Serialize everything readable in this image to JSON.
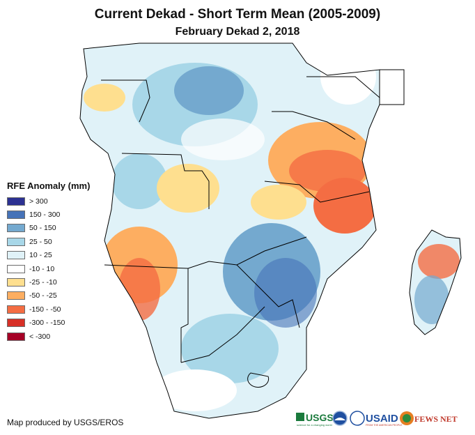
{
  "title": "Current Dekad - Short Term Mean (2005-2009)",
  "subtitle": "February Dekad 2, 2018",
  "legend": {
    "title": "RFE Anomaly (mm)",
    "items": [
      {
        "label": "> 300",
        "color": "#2c3192"
      },
      {
        "label": "150 - 300",
        "color": "#4673b8"
      },
      {
        "label": "50 - 150",
        "color": "#74a9cf"
      },
      {
        "label": "25 - 50",
        "color": "#a8d7e8"
      },
      {
        "label": "10 - 25",
        "color": "#e0f2f8"
      },
      {
        "label": "-10 - 10",
        "color": "#ffffff"
      },
      {
        "label": "-25 - -10",
        "color": "#fedf8f"
      },
      {
        "label": "-50 - -25",
        "color": "#fdae61"
      },
      {
        "label": "-150 - -50",
        "color": "#f46d43"
      },
      {
        "label": "-300 - -150",
        "color": "#d73027"
      },
      {
        "label": "< -300",
        "color": "#a50026"
      }
    ]
  },
  "credit": "Map produced by USGS/EROS",
  "logos": [
    "USGS",
    "NOAA",
    "USAID",
    "FEWS NET"
  ],
  "logo_texts": {
    "usgs": "USGS",
    "usgs_tagline": "science for a changing world",
    "usaid": "USAID",
    "usaid_tagline": "FROM THE AMERICAN PEOPLE",
    "fews": "FEWS NET"
  }
}
